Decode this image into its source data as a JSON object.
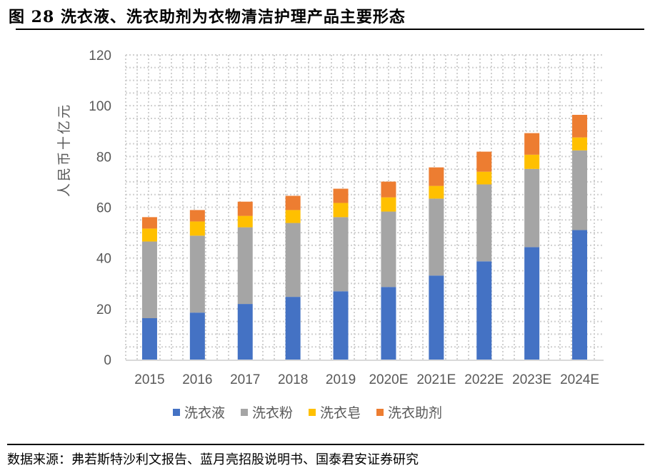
{
  "title": "图 28 洗衣液、洗衣助剂为衣物清洁护理产品主要形态",
  "source": "数据来源：弗若斯特沙利文报告、蓝月亮招股说明书、国泰君安证券研究",
  "chart_data": {
    "type": "bar",
    "stacked": true,
    "ylabel": "人民币十亿元",
    "xlabel": "",
    "ylim": [
      0,
      120
    ],
    "yticks": [
      0,
      20,
      40,
      60,
      80,
      100,
      120
    ],
    "grid": true,
    "legend_position": "bottom",
    "categories": [
      "2015",
      "2016",
      "2017",
      "2018",
      "2019",
      "2020E",
      "2021E",
      "2022E",
      "2023E",
      "2024E"
    ],
    "series": [
      {
        "name": "洗衣液",
        "color": "#4472C4",
        "values": [
          16.3,
          18.5,
          21.9,
          24.7,
          26.9,
          28.6,
          33.1,
          38.7,
          44.3,
          51.0
        ]
      },
      {
        "name": "洗衣粉",
        "color": "#A5A5A5",
        "values": [
          30.2,
          30.3,
          30.2,
          29.1,
          29.2,
          29.7,
          30.3,
          30.3,
          30.8,
          31.4
        ]
      },
      {
        "name": "洗衣皂",
        "color": "#FFC000",
        "values": [
          5.1,
          5.6,
          4.5,
          5.1,
          5.6,
          5.6,
          5.0,
          5.0,
          5.6,
          5.1
        ]
      },
      {
        "name": "洗衣助剂",
        "color": "#ED7D31",
        "values": [
          4.5,
          4.5,
          5.6,
          5.6,
          5.6,
          6.2,
          7.3,
          7.9,
          8.5,
          8.9
        ]
      }
    ]
  }
}
